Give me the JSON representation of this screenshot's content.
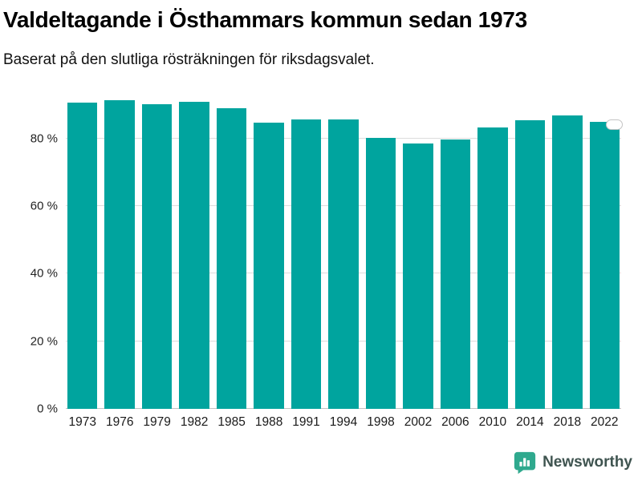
{
  "header": {
    "title": "Valdeltagande i Östhammars kommun sedan 1973",
    "subtitle": "Baserat på den slutliga rösträkningen för riksdagsvalet."
  },
  "chart_data": {
    "type": "bar",
    "title": "Valdeltagande i Östhammars kommun sedan 1973",
    "subtitle": "Baserat på den slutliga rösträkningen för riksdagsvalet.",
    "categories": [
      "1973",
      "1976",
      "1979",
      "1982",
      "1985",
      "1988",
      "1991",
      "1994",
      "1998",
      "2002",
      "2006",
      "2010",
      "2014",
      "2018",
      "2022"
    ],
    "values": [
      90.6,
      91.4,
      90.2,
      90.8,
      89.0,
      84.6,
      85.6,
      85.5,
      80.2,
      78.4,
      79.6,
      83.2,
      85.3,
      86.7,
      84.9
    ],
    "xlabel": "",
    "ylabel": "",
    "ylim": [
      0,
      92
    ],
    "yticks": [
      {
        "value": 0,
        "label": "0 %"
      },
      {
        "value": 20,
        "label": "20 %"
      },
      {
        "value": 40,
        "label": "40 %"
      },
      {
        "value": 60,
        "label": "60 %"
      },
      {
        "value": 80,
        "label": "80 %"
      }
    ],
    "grid": true,
    "legend": "none",
    "bar_color": "#00A49E",
    "annotation_on_last_bar": true
  },
  "footer": {
    "brand": "Newsworthy",
    "brand_color": "#2FA98E"
  }
}
